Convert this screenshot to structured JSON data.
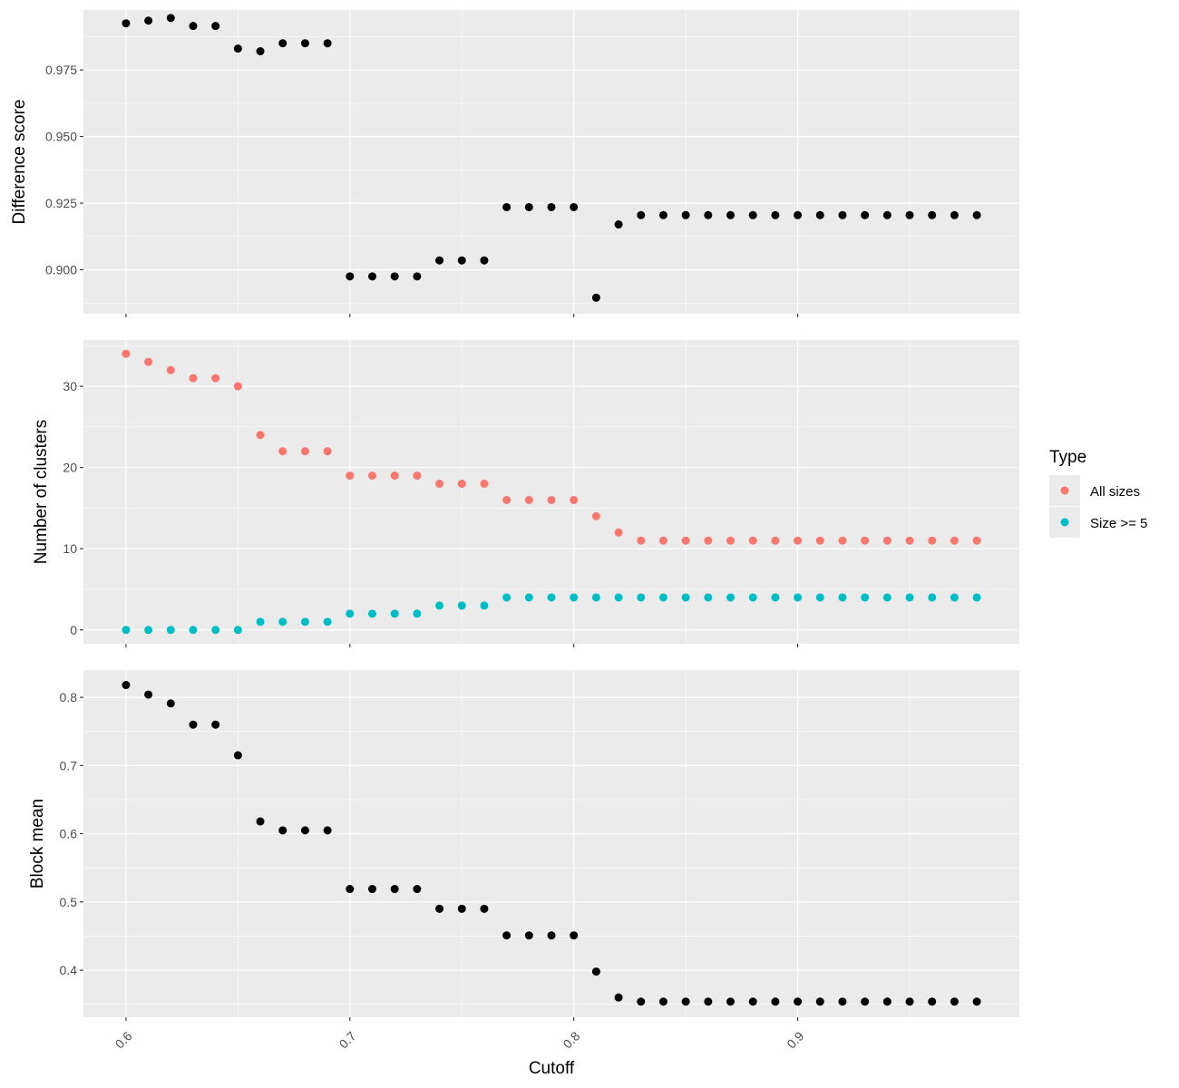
{
  "chart_data": {
    "type": "scatter",
    "xlabel": "Cutoff",
    "x_ticks": [
      0.6,
      0.7,
      0.8,
      0.9
    ],
    "x_tick_labels": [
      "0.6",
      "0.7",
      "0.8",
      "0.9"
    ],
    "xlim": [
      0.581,
      0.999
    ],
    "grid": true,
    "legend": {
      "title": "Type",
      "placement": "right",
      "entries": [
        {
          "label": "All sizes",
          "color": "#f8766d"
        },
        {
          "label": "Size >= 5",
          "color": "#00bfc4"
        }
      ]
    },
    "panels": [
      {
        "ylabel": "Difference score",
        "ylim": [
          0.8835,
          0.9975
        ],
        "y_ticks": [
          0.9,
          0.925,
          0.95,
          0.975
        ],
        "y_tick_labels": [
          "0.900",
          "0.925",
          "0.950",
          "0.975"
        ],
        "series": [
          {
            "color": "#000000",
            "x": [
              0.6,
              0.61,
              0.62,
              0.63,
              0.64,
              0.65,
              0.66,
              0.67,
              0.68,
              0.69,
              0.7,
              0.71,
              0.72,
              0.73,
              0.74,
              0.75,
              0.76,
              0.77,
              0.78,
              0.79,
              0.8,
              0.81,
              0.82,
              0.83,
              0.84,
              0.85,
              0.86,
              0.87,
              0.88,
              0.89,
              0.9,
              0.91,
              0.92,
              0.93,
              0.94,
              0.95,
              0.96,
              0.97,
              0.98
            ],
            "y": [
              0.9925,
              0.9935,
              0.9945,
              0.9915,
              0.9915,
              0.983,
              0.982,
              0.985,
              0.985,
              0.985,
              0.8975,
              0.8975,
              0.8975,
              0.8975,
              0.9035,
              0.9035,
              0.9035,
              0.9235,
              0.9235,
              0.9235,
              0.9235,
              0.8895,
              0.917,
              0.9205,
              0.9205,
              0.9205,
              0.9205,
              0.9205,
              0.9205,
              0.9205,
              0.9205,
              0.9205,
              0.9205,
              0.9205,
              0.9205,
              0.9205,
              0.9205,
              0.9205,
              0.9205
            ]
          }
        ]
      },
      {
        "ylabel": "Number of clusters",
        "ylim": [
          -1.7,
          35.7
        ],
        "y_ticks": [
          0,
          10,
          20,
          30
        ],
        "y_tick_labels": [
          "0",
          "10",
          "20",
          "30"
        ],
        "series": [
          {
            "name": "All sizes",
            "color": "#f8766d",
            "x": [
              0.6,
              0.61,
              0.62,
              0.63,
              0.64,
              0.65,
              0.66,
              0.67,
              0.68,
              0.69,
              0.7,
              0.71,
              0.72,
              0.73,
              0.74,
              0.75,
              0.76,
              0.77,
              0.78,
              0.79,
              0.8,
              0.81,
              0.82,
              0.83,
              0.84,
              0.85,
              0.86,
              0.87,
              0.88,
              0.89,
              0.9,
              0.91,
              0.92,
              0.93,
              0.94,
              0.95,
              0.96,
              0.97,
              0.98
            ],
            "y": [
              34,
              33,
              32,
              31,
              31,
              30,
              24,
              22,
              22,
              22,
              19,
              19,
              19,
              19,
              18,
              18,
              18,
              16,
              16,
              16,
              16,
              14,
              12,
              11,
              11,
              11,
              11,
              11,
              11,
              11,
              11,
              11,
              11,
              11,
              11,
              11,
              11,
              11,
              11
            ]
          },
          {
            "name": "Size >= 5",
            "color": "#00bfc4",
            "x": [
              0.6,
              0.61,
              0.62,
              0.63,
              0.64,
              0.65,
              0.66,
              0.67,
              0.68,
              0.69,
              0.7,
              0.71,
              0.72,
              0.73,
              0.74,
              0.75,
              0.76,
              0.77,
              0.78,
              0.79,
              0.8,
              0.81,
              0.82,
              0.83,
              0.84,
              0.85,
              0.86,
              0.87,
              0.88,
              0.89,
              0.9,
              0.91,
              0.92,
              0.93,
              0.94,
              0.95,
              0.96,
              0.97,
              0.98
            ],
            "y": [
              0,
              0,
              0,
              0,
              0,
              0,
              1,
              1,
              1,
              1,
              2,
              2,
              2,
              2,
              3,
              3,
              3,
              4,
              4,
              4,
              4,
              4,
              4,
              4,
              4,
              4,
              4,
              4,
              4,
              4,
              4,
              4,
              4,
              4,
              4,
              4,
              4,
              4,
              4
            ]
          }
        ]
      },
      {
        "ylabel": "Block mean",
        "ylim": [
          0.331,
          0.84
        ],
        "y_ticks": [
          0.4,
          0.5,
          0.6,
          0.7,
          0.8
        ],
        "y_tick_labels": [
          "0.4",
          "0.5",
          "0.6",
          "0.7",
          "0.8"
        ],
        "series": [
          {
            "color": "#000000",
            "x": [
              0.6,
              0.61,
              0.62,
              0.63,
              0.64,
              0.65,
              0.66,
              0.67,
              0.68,
              0.69,
              0.7,
              0.71,
              0.72,
              0.73,
              0.74,
              0.75,
              0.76,
              0.77,
              0.78,
              0.79,
              0.8,
              0.81,
              0.82,
              0.83,
              0.84,
              0.85,
              0.86,
              0.87,
              0.88,
              0.89,
              0.9,
              0.91,
              0.92,
              0.93,
              0.94,
              0.95,
              0.96,
              0.97,
              0.98
            ],
            "y": [
              0.818,
              0.804,
              0.791,
              0.76,
              0.76,
              0.715,
              0.618,
              0.605,
              0.605,
              0.605,
              0.519,
              0.519,
              0.519,
              0.519,
              0.49,
              0.49,
              0.49,
              0.451,
              0.451,
              0.451,
              0.451,
              0.398,
              0.36,
              0.354,
              0.354,
              0.354,
              0.354,
              0.354,
              0.354,
              0.354,
              0.354,
              0.354,
              0.354,
              0.354,
              0.354,
              0.354,
              0.354,
              0.354,
              0.354
            ]
          }
        ]
      }
    ]
  }
}
